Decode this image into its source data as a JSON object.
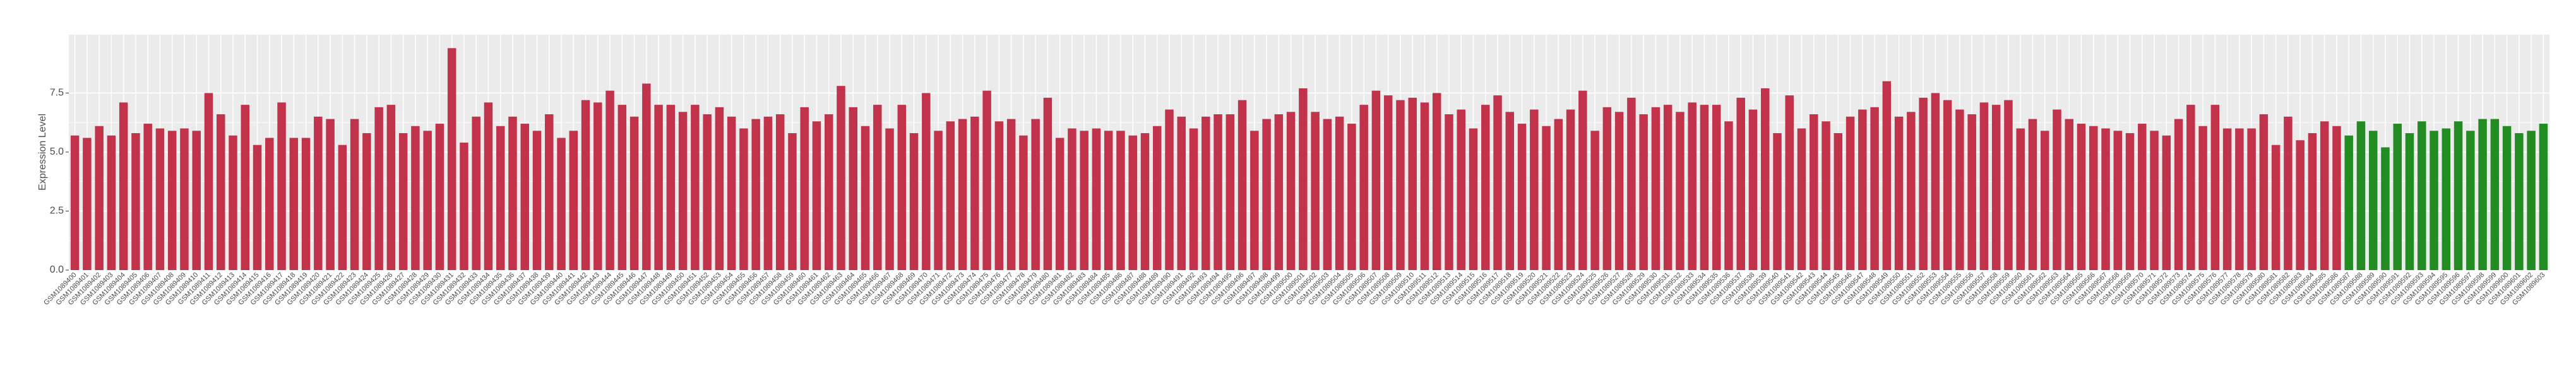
{
  "chart_data": {
    "type": "bar",
    "ylabel": "Expression Level",
    "categories": [
      "GSM1089400",
      "GSM1089401",
      "GSM1089402",
      "GSM1089403",
      "GSM1089404",
      "GSM1089405",
      "GSM1089406",
      "GSM1089407",
      "GSM1089408",
      "GSM1089409",
      "GSM1089410",
      "GSM1089411",
      "GSM1089412",
      "GSM1089413",
      "GSM1089414",
      "GSM1089415",
      "GSM1089416",
      "GSM1089417",
      "GSM1089418",
      "GSM1089419",
      "GSM1089420",
      "GSM1089421",
      "GSM1089422",
      "GSM1089423",
      "GSM1089424",
      "GSM1089425",
      "GSM1089426",
      "GSM1089427",
      "GSM1089428",
      "GSM1089429",
      "GSM1089430",
      "GSM1089431",
      "GSM1089432",
      "GSM1089433",
      "GSM1089434",
      "GSM1089435",
      "GSM1089436",
      "GSM1089437",
      "GSM1089438",
      "GSM1089439",
      "GSM1089440",
      "GSM1089441",
      "GSM1089442",
      "GSM1089443",
      "GSM1089444",
      "GSM1089445",
      "GSM1089446",
      "GSM1089447",
      "GSM1089448",
      "GSM1089449",
      "GSM1089450",
      "GSM1089451",
      "GSM1089452",
      "GSM1089453",
      "GSM1089454",
      "GSM1089455",
      "GSM1089456",
      "GSM1089457",
      "GSM1089458",
      "GSM1089459",
      "GSM1089460",
      "GSM1089461",
      "GSM1089462",
      "GSM1089463",
      "GSM1089464",
      "GSM1089465",
      "GSM1089466",
      "GSM1089467",
      "GSM1089468",
      "GSM1089469",
      "GSM1089470",
      "GSM1089471",
      "GSM1089472",
      "GSM1089473",
      "GSM1089474",
      "GSM1089475",
      "GSM1089476",
      "GSM1089477",
      "GSM1089478",
      "GSM1089479",
      "GSM1089480",
      "GSM1089481",
      "GSM1089482",
      "GSM1089483",
      "GSM1089484",
      "GSM1089485",
      "GSM1089486",
      "GSM1089487",
      "GSM1089488",
      "GSM1089489",
      "GSM1089490",
      "GSM1089491",
      "GSM1089492",
      "GSM1089493",
      "GSM1089494",
      "GSM1089495",
      "GSM1089496",
      "GSM1089497",
      "GSM1089498",
      "GSM1089499",
      "GSM1089500",
      "GSM1089501",
      "GSM1089502",
      "GSM1089503",
      "GSM1089504",
      "GSM1089505",
      "GSM1089506",
      "GSM1089507",
      "GSM1089508",
      "GSM1089509",
      "GSM1089510",
      "GSM1089511",
      "GSM1089512",
      "GSM1089513",
      "GSM1089514",
      "GSM1089515",
      "GSM1089516",
      "GSM1089517",
      "GSM1089518",
      "GSM1089519",
      "GSM1089520",
      "GSM1089521",
      "GSM1089522",
      "GSM1089523",
      "GSM1089524",
      "GSM1089525",
      "GSM1089526",
      "GSM1089527",
      "GSM1089528",
      "GSM1089529",
      "GSM1089530",
      "GSM1089531",
      "GSM1089532",
      "GSM1089533",
      "GSM1089534",
      "GSM1089535",
      "GSM1089536",
      "GSM1089537",
      "GSM1089538",
      "GSM1089539",
      "GSM1089540",
      "GSM1089541",
      "GSM1089542",
      "GSM1089543",
      "GSM1089544",
      "GSM1089545",
      "GSM1089546",
      "GSM1089547",
      "GSM1089548",
      "GSM1089549",
      "GSM1089550",
      "GSM1089551",
      "GSM1089552",
      "GSM1089553",
      "GSM1089554",
      "GSM1089555",
      "GSM1089556",
      "GSM1089557",
      "GSM1089558",
      "GSM1089559",
      "GSM1089560",
      "GSM1089561",
      "GSM1089562",
      "GSM1089563",
      "GSM1089564",
      "GSM1089565",
      "GSM1089566",
      "GSM1089567",
      "GSM1089568",
      "GSM1089569",
      "GSM1089570",
      "GSM1089571",
      "GSM1089572",
      "GSM1089573",
      "GSM1089574",
      "GSM1089575",
      "GSM1089576",
      "GSM1089577",
      "GSM1089578",
      "GSM1089579",
      "GSM1089580",
      "GSM1089581",
      "GSM1089582",
      "GSM1089583",
      "GSM1089584",
      "GSM1089585",
      "GSM1089586",
      "GSM1089587",
      "GSM1089588",
      "GSM1089589",
      "GSM1089590",
      "GSM1089591",
      "GSM1089592",
      "GSM1089593",
      "GSM1089594",
      "GSM1089595",
      "GSM1089596",
      "GSM1089597",
      "GSM1089598",
      "GSM1089599",
      "GSM1089600",
      "GSM1089601",
      "GSM1089602",
      "GSM1089603"
    ],
    "values": [
      5.7,
      5.6,
      6.1,
      5.7,
      7.1,
      5.8,
      6.2,
      6.0,
      5.9,
      6.0,
      5.9,
      7.5,
      6.6,
      5.7,
      7.0,
      5.3,
      5.6,
      7.1,
      5.6,
      5.6,
      6.5,
      6.4,
      5.3,
      6.4,
      5.8,
      6.9,
      7.0,
      5.8,
      6.1,
      5.9,
      6.2,
      9.4,
      5.4,
      6.5,
      7.1,
      6.1,
      6.5,
      6.2,
      5.9,
      6.6,
      5.6,
      5.9,
      7.2,
      7.1,
      7.6,
      7.0,
      6.5,
      7.9,
      7.0,
      7.0,
      6.7,
      7.0,
      6.6,
      6.9,
      6.5,
      6.0,
      6.4,
      6.5,
      6.6,
      5.8,
      6.9,
      6.3,
      6.6,
      7.8,
      6.9,
      6.1,
      7.0,
      6.0,
      7.0,
      5.8,
      7.5,
      5.9,
      6.3,
      6.4,
      6.5,
      7.6,
      6.3,
      6.4,
      5.7,
      6.4,
      7.3,
      5.6,
      6.0,
      5.9,
      6.0,
      5.9,
      5.9,
      5.7,
      5.8,
      6.1,
      6.8,
      6.5,
      6.0,
      6.5,
      6.6,
      6.6,
      7.2,
      5.9,
      6.4,
      6.6,
      6.7,
      7.7,
      6.7,
      6.4,
      6.5,
      6.2,
      7.0,
      7.6,
      7.4,
      7.2,
      7.3,
      7.1,
      7.5,
      6.6,
      6.8,
      6.0,
      7.0,
      7.4,
      6.7,
      6.2,
      6.8,
      6.1,
      6.4,
      6.8,
      7.6,
      5.9,
      6.9,
      6.7,
      7.3,
      6.6,
      6.9,
      7.0,
      6.7,
      7.1,
      7.0,
      7.0,
      6.3,
      7.3,
      6.8,
      7.7,
      5.8,
      7.4,
      6.0,
      6.6,
      6.3,
      5.8,
      6.5,
      6.8,
      6.9,
      8.0,
      6.5,
      6.7,
      7.3,
      7.5,
      7.2,
      6.8,
      6.6,
      7.1,
      7.0,
      7.2,
      6.0,
      6.4,
      5.9,
      6.8,
      6.4,
      6.2,
      6.1,
      6.0,
      5.9,
      5.8,
      6.2,
      5.9,
      5.7,
      6.4,
      7.0,
      6.1,
      7.0,
      6.0,
      6.0,
      6.0,
      6.6,
      5.3,
      6.5,
      5.5,
      5.8,
      6.3,
      6.1,
      5.7,
      6.3,
      5.9,
      5.2,
      6.2,
      5.8,
      6.3,
      5.9,
      6.0,
      6.3,
      5.9,
      6.4,
      6.4,
      6.1,
      5.8,
      5.9,
      6.2
    ],
    "colors": [
      "#c0334a",
      "#c0334a",
      "#c0334a",
      "#c0334a",
      "#c0334a",
      "#c0334a",
      "#c0334a",
      "#c0334a",
      "#c0334a",
      "#c0334a",
      "#c0334a",
      "#c0334a",
      "#c0334a",
      "#c0334a",
      "#c0334a",
      "#c0334a",
      "#c0334a",
      "#c0334a",
      "#c0334a",
      "#c0334a",
      "#c0334a",
      "#c0334a",
      "#c0334a",
      "#c0334a",
      "#c0334a",
      "#c0334a",
      "#c0334a",
      "#c0334a",
      "#c0334a",
      "#c0334a",
      "#c0334a",
      "#c0334a",
      "#c0334a",
      "#c0334a",
      "#c0334a",
      "#c0334a",
      "#c0334a",
      "#c0334a",
      "#c0334a",
      "#c0334a",
      "#c0334a",
      "#c0334a",
      "#c0334a",
      "#c0334a",
      "#c0334a",
      "#c0334a",
      "#c0334a",
      "#c0334a",
      "#c0334a",
      "#c0334a",
      "#c0334a",
      "#c0334a",
      "#c0334a",
      "#c0334a",
      "#c0334a",
      "#c0334a",
      "#c0334a",
      "#c0334a",
      "#c0334a",
      "#c0334a",
      "#c0334a",
      "#c0334a",
      "#c0334a",
      "#c0334a",
      "#c0334a",
      "#c0334a",
      "#c0334a",
      "#c0334a",
      "#c0334a",
      "#c0334a",
      "#c0334a",
      "#c0334a",
      "#c0334a",
      "#c0334a",
      "#c0334a",
      "#c0334a",
      "#c0334a",
      "#c0334a",
      "#c0334a",
      "#c0334a",
      "#c0334a",
      "#c0334a",
      "#c0334a",
      "#c0334a",
      "#c0334a",
      "#c0334a",
      "#c0334a",
      "#c0334a",
      "#c0334a",
      "#c0334a",
      "#c0334a",
      "#c0334a",
      "#c0334a",
      "#c0334a",
      "#c0334a",
      "#c0334a",
      "#c0334a",
      "#c0334a",
      "#c0334a",
      "#c0334a",
      "#c0334a",
      "#c0334a",
      "#c0334a",
      "#c0334a",
      "#c0334a",
      "#c0334a",
      "#c0334a",
      "#c0334a",
      "#c0334a",
      "#c0334a",
      "#c0334a",
      "#c0334a",
      "#c0334a",
      "#c0334a",
      "#c0334a",
      "#c0334a",
      "#c0334a",
      "#c0334a",
      "#c0334a",
      "#c0334a",
      "#c0334a",
      "#c0334a",
      "#c0334a",
      "#c0334a",
      "#c0334a",
      "#c0334a",
      "#c0334a",
      "#c0334a",
      "#c0334a",
      "#c0334a",
      "#c0334a",
      "#c0334a",
      "#c0334a",
      "#c0334a",
      "#c0334a",
      "#c0334a",
      "#c0334a",
      "#c0334a",
      "#c0334a",
      "#c0334a",
      "#c0334a",
      "#c0334a",
      "#c0334a",
      "#c0334a",
      "#c0334a",
      "#c0334a",
      "#c0334a",
      "#c0334a",
      "#c0334a",
      "#c0334a",
      "#c0334a",
      "#c0334a",
      "#c0334a",
      "#c0334a",
      "#c0334a",
      "#c0334a",
      "#c0334a",
      "#c0334a",
      "#c0334a",
      "#c0334a",
      "#c0334a",
      "#c0334a",
      "#c0334a",
      "#c0334a",
      "#c0334a",
      "#c0334a",
      "#c0334a",
      "#c0334a",
      "#c0334a",
      "#c0334a",
      "#c0334a",
      "#c0334a",
      "#c0334a",
      "#c0334a",
      "#c0334a",
      "#c0334a",
      "#c0334a",
      "#c0334a",
      "#c0334a",
      "#c0334a",
      "#c0334a",
      "#c0334a",
      "#c0334a",
      "#c0334a",
      "#c0334a",
      "#c0334a",
      "#c0334a",
      "#228b22",
      "#228b22",
      "#228b22",
      "#228b22",
      "#228b22",
      "#228b22",
      "#228b22",
      "#228b22",
      "#228b22",
      "#228b22",
      "#228b22",
      "#228b22",
      "#228b22",
      "#228b22",
      "#228b22",
      "#228b22",
      "#228b22",
      "#228b22",
      "#228b22",
      "#228b22",
      "#228b22"
    ],
    "ylim": [
      0,
      9.97
    ],
    "yticks": [
      {
        "value": 0,
        "label": "0.0"
      },
      {
        "value": 2.5,
        "label": "2.5"
      },
      {
        "value": 5,
        "label": "5.0"
      },
      {
        "value": 7.5,
        "label": "7.5"
      }
    ],
    "grid": true
  }
}
